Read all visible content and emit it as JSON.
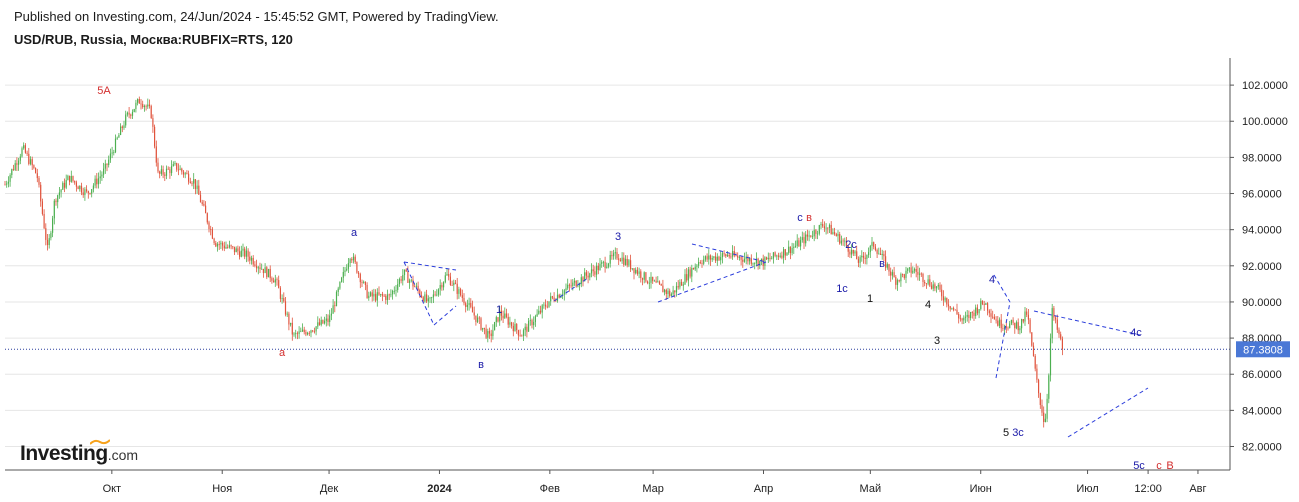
{
  "header": {
    "published": "Published on Investing.com, 24/Jun/2024 - 15:45:52 GMT, Powered by TradingView.",
    "symbol": "USD/RUB, Russia, Москва:RUBFIX=RTS, 120"
  },
  "logo": {
    "brand": "Investing",
    "domain": ".com"
  },
  "colors": {
    "up": "#4caf50",
    "down": "#e0533c",
    "label_red": "#d32f2f",
    "label_blue": "#1a1aa8",
    "label_black": "#111111",
    "dash": "#2b3ddb",
    "price_tag": "#4a78d6",
    "grid": "#e6e6e6"
  },
  "chart_data": {
    "type": "candlestick",
    "title": "USD/RUB, Russia, Москва:RUBFIX=RTS, 120",
    "ylim": [
      80.7,
      103.5
    ],
    "y_ticks": [
      "102.0000",
      "100.0000",
      "98.0000",
      "96.0000",
      "94.0000",
      "92.0000",
      "90.0000",
      "88.0000",
      "86.0000",
      "84.0000",
      "82.0000"
    ],
    "y_tick_values": [
      102,
      100,
      98,
      96,
      94,
      92,
      90,
      88,
      86,
      84,
      82
    ],
    "x_ticks": [
      "Окт",
      "Ноя",
      "Дек",
      "2024",
      "Фев",
      "Мар",
      "Апр",
      "Май",
      "Июн",
      "Июл",
      "12:00",
      "Авг"
    ],
    "current_price": 87.3808,
    "current_price_label": "87.3808",
    "price_path": [
      {
        "date": "2023-09-01",
        "value": 96.5
      },
      {
        "date": "2023-09-06",
        "value": 98.5
      },
      {
        "date": "2023-09-10",
        "value": 97.0
      },
      {
        "date": "2023-09-13",
        "value": 92.8
      },
      {
        "date": "2023-09-15",
        "value": 95.7
      },
      {
        "date": "2023-09-19",
        "value": 96.9
      },
      {
        "date": "2023-09-24",
        "value": 96.0
      },
      {
        "date": "2023-09-29",
        "value": 97.3
      },
      {
        "date": "2023-10-05",
        "value": 100.2
      },
      {
        "date": "2023-10-09",
        "value": 101.2
      },
      {
        "date": "2023-10-12",
        "value": 100.5
      },
      {
        "date": "2023-10-14",
        "value": 97.0
      },
      {
        "date": "2023-10-19",
        "value": 97.5
      },
      {
        "date": "2023-10-24",
        "value": 96.7
      },
      {
        "date": "2023-10-30",
        "value": 93.3
      },
      {
        "date": "2023-11-08",
        "value": 92.6
      },
      {
        "date": "2023-11-16",
        "value": 91.2
      },
      {
        "date": "2023-11-21",
        "value": 88.1
      },
      {
        "date": "2023-11-27",
        "value": 88.6
      },
      {
        "date": "2023-12-01",
        "value": 89.0
      },
      {
        "date": "2023-12-07",
        "value": 92.7
      },
      {
        "date": "2023-12-12",
        "value": 90.3
      },
      {
        "date": "2023-12-18",
        "value": 90.3
      },
      {
        "date": "2023-12-22",
        "value": 91.6
      },
      {
        "date": "2023-12-29",
        "value": 89.9
      },
      {
        "date": "2024-01-03",
        "value": 91.5
      },
      {
        "date": "2024-01-08",
        "value": 90.1
      },
      {
        "date": "2024-01-15",
        "value": 88.0
      },
      {
        "date": "2024-01-18",
        "value": 89.4
      },
      {
        "date": "2024-01-24",
        "value": 88.2
      },
      {
        "date": "2024-02-01",
        "value": 90.1
      },
      {
        "date": "2024-02-10",
        "value": 91.3
      },
      {
        "date": "2024-02-20",
        "value": 92.6
      },
      {
        "date": "2024-02-28",
        "value": 91.3
      },
      {
        "date": "2024-03-06",
        "value": 90.4
      },
      {
        "date": "2024-03-14",
        "value": 92.3
      },
      {
        "date": "2024-03-22",
        "value": 92.6
      },
      {
        "date": "2024-04-01",
        "value": 92.2
      },
      {
        "date": "2024-04-10",
        "value": 93.1
      },
      {
        "date": "2024-04-18",
        "value": 94.3
      },
      {
        "date": "2024-04-24",
        "value": 93.2
      },
      {
        "date": "2024-04-28",
        "value": 92.2
      },
      {
        "date": "2024-05-02",
        "value": 93.2
      },
      {
        "date": "2024-05-08",
        "value": 91.2
      },
      {
        "date": "2024-05-13",
        "value": 91.8
      },
      {
        "date": "2024-05-20",
        "value": 90.7
      },
      {
        "date": "2024-05-27",
        "value": 88.9
      },
      {
        "date": "2024-06-02",
        "value": 90.0
      },
      {
        "date": "2024-06-06",
        "value": 88.8
      },
      {
        "date": "2024-06-12",
        "value": 88.7
      },
      {
        "date": "2024-06-14",
        "value": 89.4
      },
      {
        "date": "2024-06-17",
        "value": 85.2
      },
      {
        "date": "2024-06-19",
        "value": 83.2
      },
      {
        "date": "2024-06-20",
        "value": 85.7
      },
      {
        "date": "2024-06-21",
        "value": 89.5
      },
      {
        "date": "2024-06-24",
        "value": 87.4
      }
    ],
    "annotations": [
      {
        "text": "5A",
        "color": "red"
      },
      {
        "text": "a",
        "color": "red"
      },
      {
        "text": "a",
        "color": "blue"
      },
      {
        "text": "в",
        "color": "blue"
      },
      {
        "text": "1",
        "color": "blue"
      },
      {
        "text": "3",
        "color": "blue"
      },
      {
        "text": "c",
        "color": "blue"
      },
      {
        "text": "в",
        "color": "red"
      },
      {
        "text": "2c",
        "color": "blue"
      },
      {
        "text": "1c",
        "color": "blue"
      },
      {
        "text": "в",
        "color": "blue"
      },
      {
        "text": "1",
        "color": "black"
      },
      {
        "text": "4",
        "color": "black"
      },
      {
        "text": "3",
        "color": "black"
      },
      {
        "text": "4",
        "color": "blue"
      },
      {
        "text": "5",
        "color": "black"
      },
      {
        "text": "3c",
        "color": "blue"
      },
      {
        "text": "4c",
        "color": "blue"
      },
      {
        "text": "5c",
        "color": "blue"
      },
      {
        "text": "c",
        "color": "red"
      },
      {
        "text": "B",
        "color": "red"
      }
    ]
  }
}
